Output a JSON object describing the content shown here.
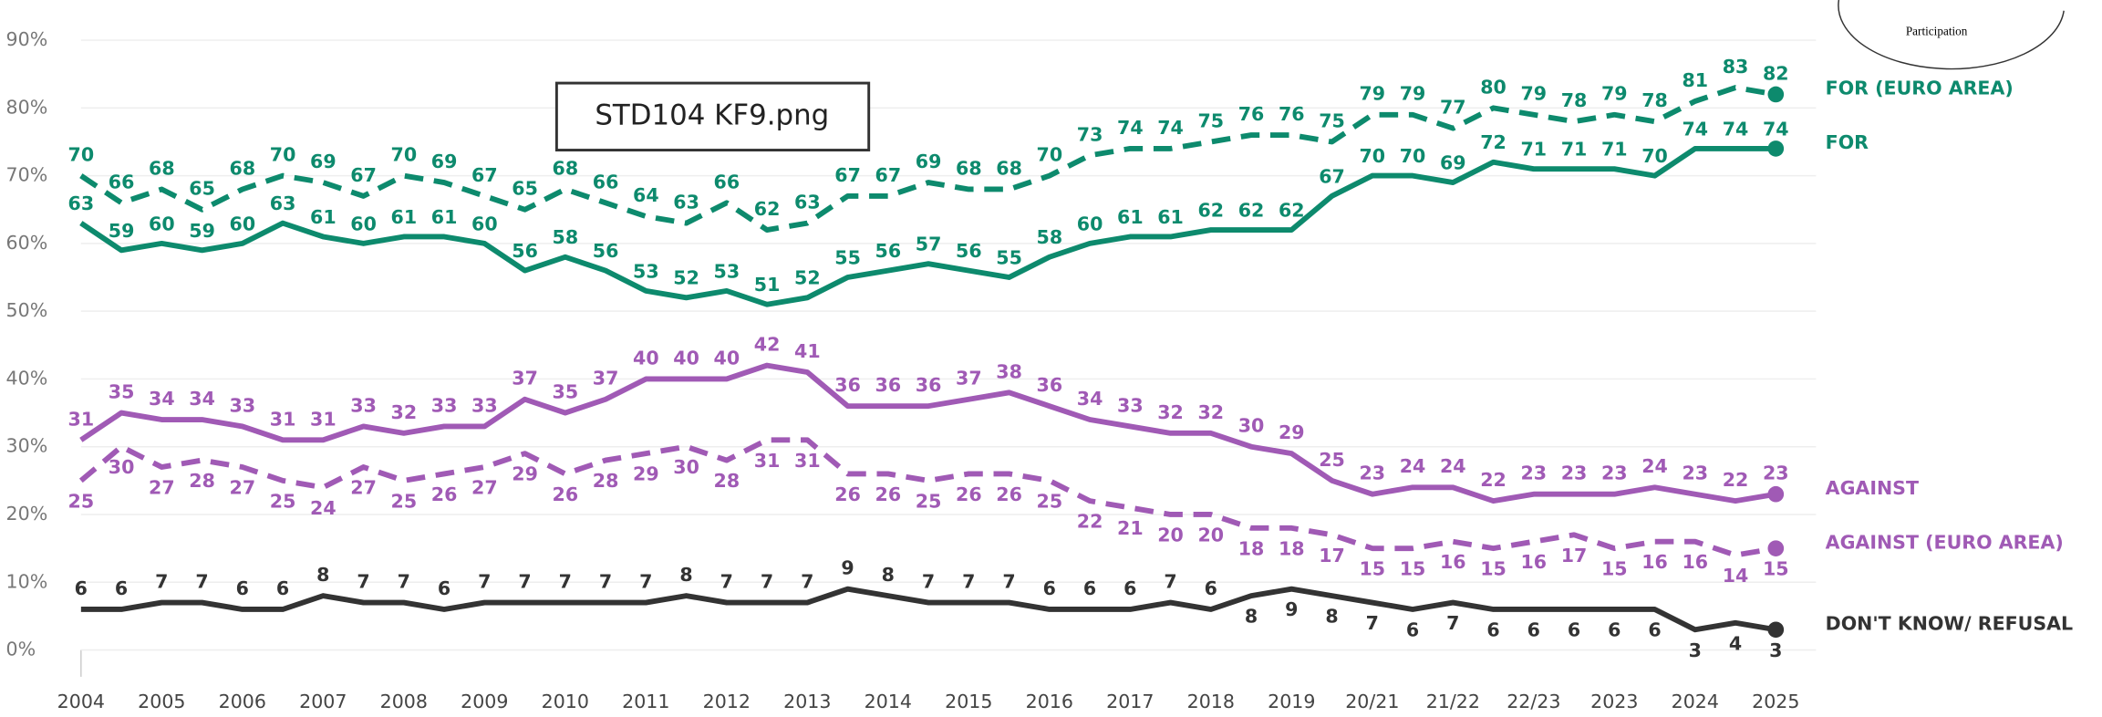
{
  "chart_data": {
    "type": "line",
    "annotation": "STD104 KF9.png",
    "corner_text": "Participation",
    "categories": [
      "2004",
      null,
      "2005",
      null,
      "2006",
      null,
      "2007",
      null,
      "2008",
      null,
      "2009",
      null,
      "2010",
      null,
      "2011",
      null,
      "2012",
      null,
      "2013",
      null,
      "2014",
      null,
      "2015",
      null,
      "2016",
      null,
      "2017",
      null,
      "2018",
      null,
      "2019",
      null,
      "20/21",
      null,
      "21/22",
      null,
      "22/23",
      null,
      "2023",
      null,
      "2024",
      null,
      "2025"
    ],
    "ylim": [
      0,
      90
    ],
    "yticks": [
      {
        "value": 0,
        "label": "0%"
      },
      {
        "value": 10,
        "label": "10%"
      },
      {
        "value": 20,
        "label": "20%"
      },
      {
        "value": 30,
        "label": "30%"
      },
      {
        "value": 40,
        "label": "40%"
      },
      {
        "value": 50,
        "label": "50%"
      },
      {
        "value": 60,
        "label": "60%"
      },
      {
        "value": 70,
        "label": "70%"
      },
      {
        "value": 80,
        "label": "80%"
      },
      {
        "value": 90,
        "label": "90%"
      }
    ],
    "grid": true,
    "series": [
      {
        "name": "FOR (EURO AREA)",
        "color": "#0d8a6d",
        "dashed": true,
        "values": [
          70,
          66,
          68,
          65,
          68,
          70,
          69,
          67,
          70,
          69,
          67,
          65,
          68,
          66,
          64,
          63,
          66,
          62,
          63,
          67,
          67,
          69,
          68,
          68,
          70,
          73,
          74,
          74,
          75,
          76,
          76,
          75,
          79,
          79,
          77,
          80,
          79,
          78,
          79,
          78,
          81,
          83,
          82
        ]
      },
      {
        "name": "FOR",
        "color": "#0d8a6d",
        "dashed": false,
        "values": [
          63,
          59,
          60,
          59,
          60,
          63,
          61,
          60,
          61,
          61,
          60,
          56,
          58,
          56,
          53,
          52,
          53,
          51,
          52,
          55,
          56,
          57,
          56,
          55,
          58,
          60,
          61,
          61,
          62,
          62,
          62,
          67,
          70,
          70,
          69,
          72,
          71,
          71,
          71,
          70,
          74,
          74,
          74
        ]
      },
      {
        "name": "AGAINST",
        "color": "#a05ab5",
        "dashed": false,
        "values": [
          31,
          35,
          34,
          34,
          33,
          31,
          31,
          33,
          32,
          33,
          33,
          37,
          35,
          37,
          40,
          40,
          40,
          42,
          41,
          36,
          36,
          36,
          37,
          38,
          36,
          34,
          33,
          32,
          32,
          30,
          29,
          25,
          23,
          24,
          24,
          22,
          23,
          23,
          23,
          24,
          23,
          22,
          23
        ]
      },
      {
        "name": "AGAINST (EURO AREA)",
        "color": "#a05ab5",
        "dashed": true,
        "values": [
          25,
          30,
          27,
          28,
          27,
          25,
          24,
          27,
          25,
          26,
          27,
          29,
          26,
          28,
          29,
          30,
          28,
          31,
          31,
          26,
          26,
          25,
          26,
          26,
          25,
          22,
          21,
          20,
          20,
          18,
          18,
          17,
          15,
          15,
          16,
          15,
          16,
          17,
          15,
          16,
          16,
          14,
          15
        ]
      },
      {
        "name": "DON'T KNOW/ REFUSAL",
        "color": "#333333",
        "dashed": false,
        "values": [
          6,
          6,
          7,
          7,
          6,
          6,
          8,
          7,
          7,
          6,
          7,
          7,
          7,
          7,
          7,
          8,
          7,
          7,
          7,
          9,
          8,
          7,
          7,
          7,
          6,
          6,
          6,
          7,
          6,
          8,
          9,
          8,
          7,
          6,
          7,
          6,
          6,
          6,
          6,
          6,
          3,
          4,
          3
        ]
      }
    ]
  }
}
